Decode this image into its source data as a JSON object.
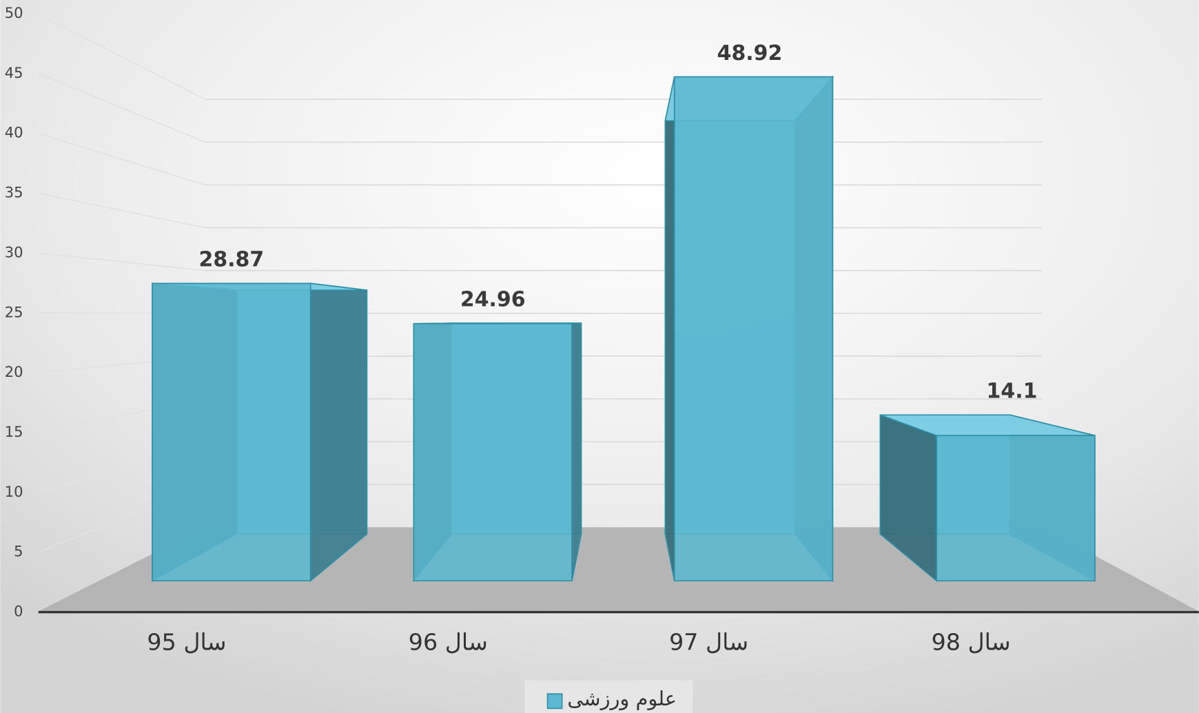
{
  "chart_data": {
    "type": "bar3d",
    "categories": [
      "سال 95",
      "سال 96",
      "سال 97",
      "سال 98"
    ],
    "series": [
      {
        "name": "علوم ورزشی",
        "color": "#5bb8d0",
        "values": [
          28.87,
          24.96,
          48.92,
          14.1
        ]
      }
    ],
    "ylim": [
      0,
      50
    ],
    "yticks": [
      0,
      5,
      10,
      15,
      20,
      25,
      30,
      35,
      40,
      45,
      50
    ],
    "grid": true,
    "legend": "bottom"
  }
}
